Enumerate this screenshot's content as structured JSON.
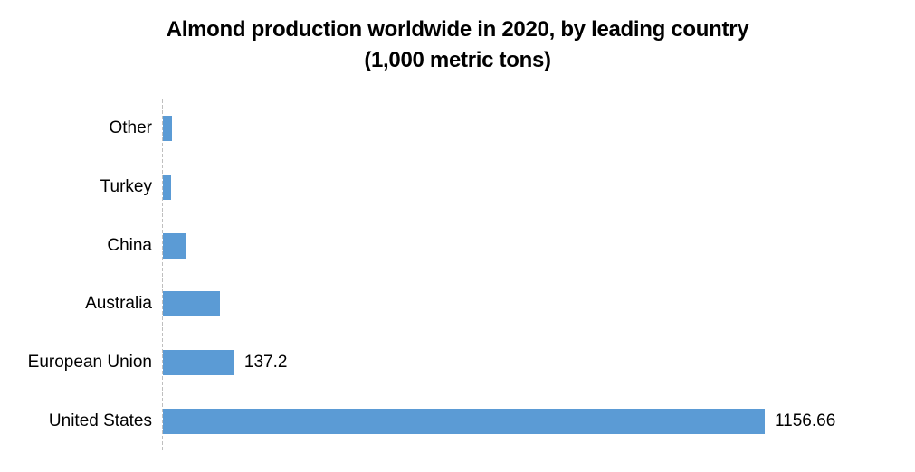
{
  "page": {
    "background": "#FFFFFF"
  },
  "title": {
    "line1": "Almond production worldwide in 2020, by leading country",
    "line2": "(1,000 metric tons)"
  },
  "chart_data": {
    "type": "bar",
    "orientation": "horizontal",
    "title": "Almond production worldwide in 2020, by leading country (1,000 metric tons)",
    "unit": "1,000 metric tons",
    "categories": [
      "Other",
      "Turkey",
      "China",
      "Australia",
      "European Union",
      "United States"
    ],
    "values": [
      17,
      15,
      45,
      110,
      137.2,
      1156.66
    ],
    "value_labels_shown": [
      "",
      "",
      "",
      "",
      "137.2",
      "1156.66"
    ],
    "xlim": [
      0,
      1290
    ],
    "grid": false,
    "legend": false,
    "bar_color": "#5B9BD5",
    "axis_line_color": "#BFBFBF",
    "text_color": "#000000"
  }
}
